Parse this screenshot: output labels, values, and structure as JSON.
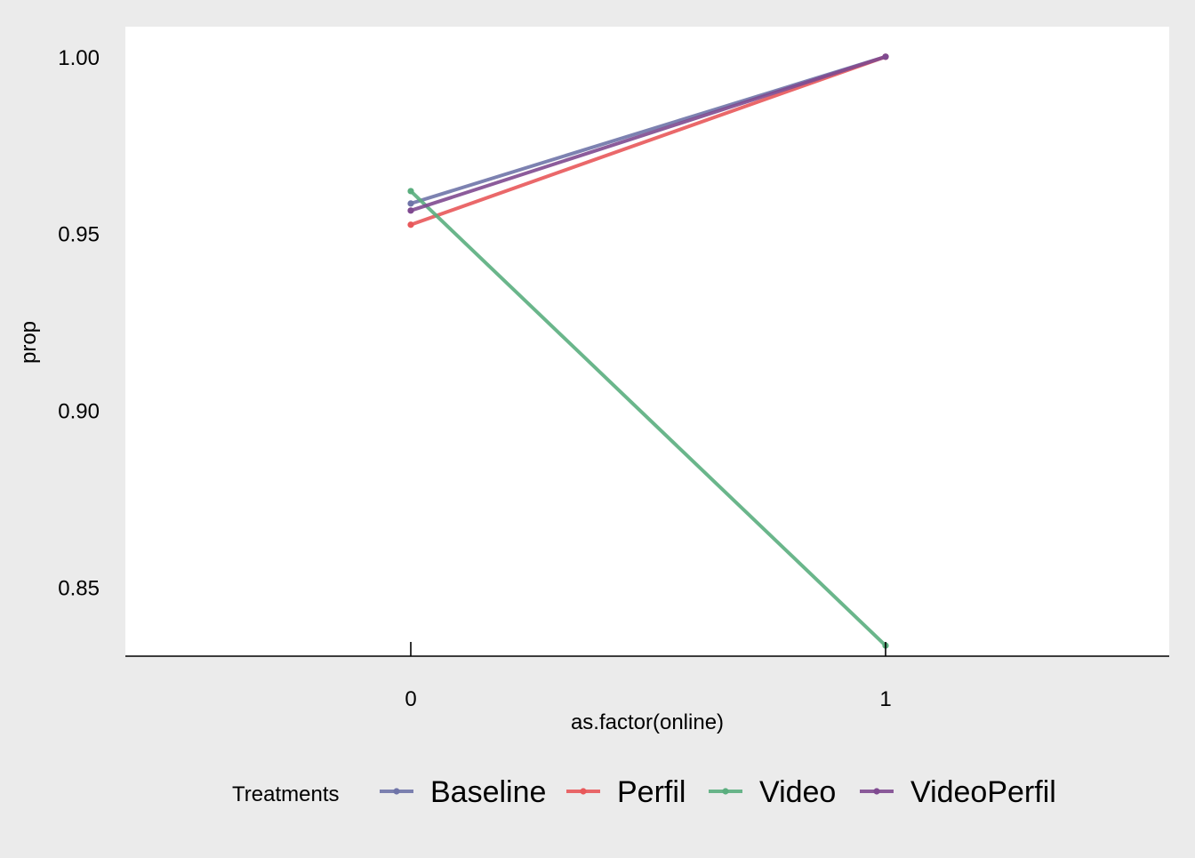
{
  "chart_data": {
    "type": "line",
    "xlabel": "as.factor(online)",
    "ylabel": "prop",
    "categories": [
      "0",
      "1"
    ],
    "ylim": [
      0.8305,
      1.0085
    ],
    "yticks": [
      0.85,
      0.9,
      0.95,
      1.0
    ],
    "ytick_labels": [
      "0.85",
      "0.90",
      "0.95",
      "1.00"
    ],
    "grid": false,
    "legend": {
      "title": "Treatments",
      "position": "bottom"
    },
    "series": [
      {
        "name": "Baseline",
        "color": "#6f74a8",
        "values": [
          0.9585,
          1.0
        ]
      },
      {
        "name": "Perfil",
        "color": "#e8585a",
        "values": [
          0.9525,
          1.0
        ]
      },
      {
        "name": "Video",
        "color": "#5aae7e",
        "values": [
          0.962,
          0.8335
        ]
      },
      {
        "name": "VideoPerfil",
        "color": "#7f4a90",
        "values": [
          0.9565,
          1.0
        ]
      }
    ]
  }
}
